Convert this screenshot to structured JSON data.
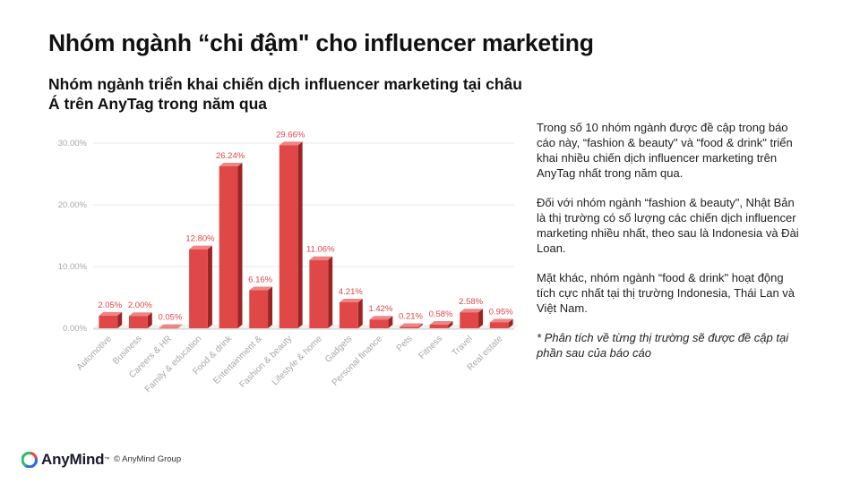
{
  "slide": {
    "title": "Nhóm ngành “chi đậm\" cho influencer marketing",
    "subtitle": "Nhóm ngành triển khai chiến dịch influencer marketing tại châu Á trên AnyTag trong năm qua"
  },
  "body_text": {
    "p1": "Trong số 10 nhóm ngành được đề cập trong báo cáo này, “fashion & beauty\" và “food & drink\" triển khai nhiều chiến dịch influencer marketing trên AnyTag nhất trong năm qua.",
    "p2": "Đối với nhóm ngành “fashion & beauty\", Nhật Bản là thị trường có số lượng các chiến dịch influencer marketing nhiều nhất, theo sau là Indonesia và Đài Loan.",
    "p3": "Mặt khác, nhóm ngành “food & drink\" hoạt động tích cực nhất tại thị trường Indonesia, Thái Lan và Việt Nam.",
    "note": "* Phân tích về từng thị trường sẽ được đề cập tại phần sau của báo cáo"
  },
  "footer": {
    "logo_text": "AnyMind",
    "logo_tm": "™",
    "copyright": "© AnyMind Group"
  },
  "colors": {
    "bar_front": "#e04848",
    "bar_side": "#9c2424",
    "bar_top": "#f08484",
    "label": "#e04848",
    "axis_text": "#a8a8a8",
    "grid": "#e8e8e8",
    "logo_navy": "#1a1a2e",
    "logo_green": "#2bbf6a",
    "logo_red": "#e94b3c",
    "logo_blue": "#2a6fd6"
  },
  "chart_data": {
    "type": "bar",
    "style": "3d",
    "categories": [
      "Automotive",
      "Business",
      "Careers & HR",
      "Family & education",
      "Food & drink",
      "Entertainment & ",
      "Fashion & beauty",
      "Lifestyle & home",
      "Gadgets",
      "Personal finance",
      "Pets",
      "Fitness",
      "Travel",
      "Real estate"
    ],
    "values": [
      2.05,
      2.0,
      0.05,
      12.8,
      26.24,
      6.16,
      29.66,
      11.06,
      4.21,
      1.42,
      0.21,
      0.58,
      2.58,
      0.95
    ],
    "value_labels": [
      "2.05%",
      "2.00%",
      "0.05%",
      "12.80%",
      "26.24%",
      "6.16%",
      "29.66%",
      "11.06%",
      "4.21%",
      "1.42%",
      "0.21%",
      "0.58%",
      "2.58%",
      "0.95%"
    ],
    "y_ticks": [
      0,
      10,
      20,
      30
    ],
    "y_tick_labels": [
      "0.00%",
      "10.00%",
      "20.00%",
      "30.00%"
    ],
    "ylim": [
      0,
      32
    ],
    "grid": true,
    "legend": "none"
  }
}
